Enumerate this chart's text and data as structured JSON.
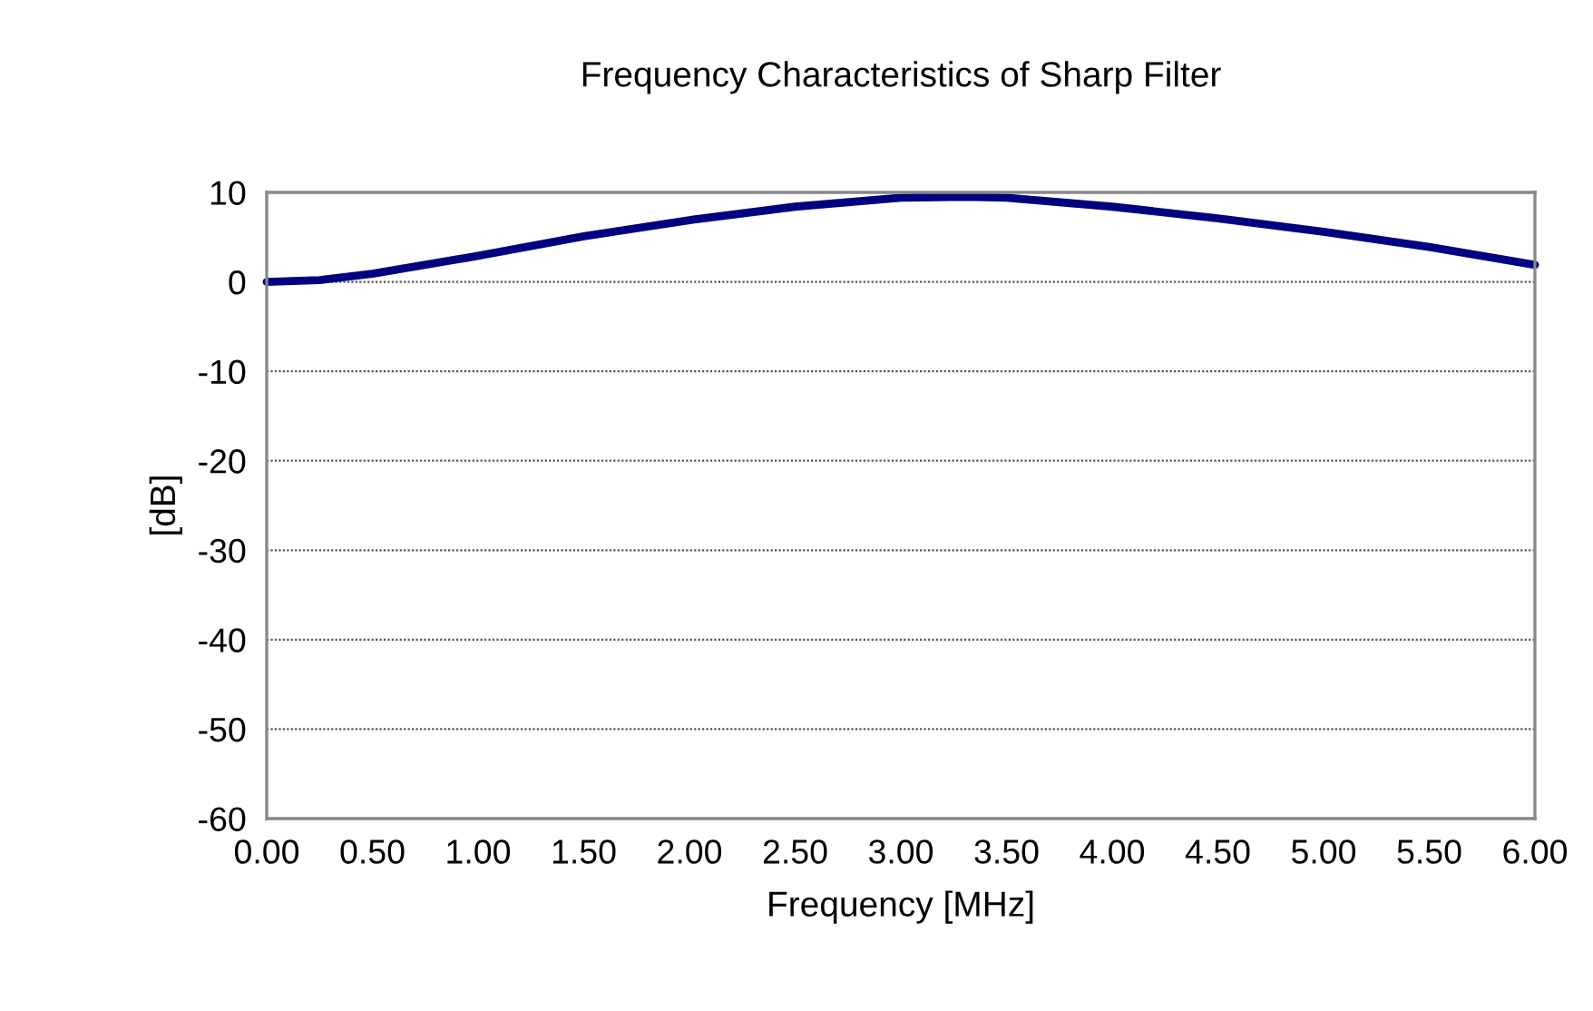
{
  "chart_data": {
    "type": "line",
    "title": "Frequency Characteristics of Sharp Filter",
    "xlabel": "Frequency [MHz]",
    "ylabel": "[dB]",
    "x": [
      0,
      0.25,
      0.5,
      1.0,
      1.5,
      2.0,
      2.5,
      3.0,
      3.3,
      3.5,
      4.0,
      4.5,
      5.0,
      5.5,
      6.0
    ],
    "series": [
      {
        "color": "#000080",
        "values": [
          0,
          0.2,
          0.9,
          2.9,
          5.1,
          6.9,
          8.4,
          9.4,
          9.5,
          9.4,
          8.4,
          7.1,
          5.6,
          3.9,
          1.9
        ]
      }
    ],
    "xlim": [
      0,
      6
    ],
    "xticks": [
      {
        "value": 0,
        "label": "0.00"
      },
      {
        "value": 0.5,
        "label": "0.50"
      },
      {
        "value": 1,
        "label": "1.00"
      },
      {
        "value": 1.5,
        "label": "1.50"
      },
      {
        "value": 2,
        "label": "2.00"
      },
      {
        "value": 2.5,
        "label": "2.50"
      },
      {
        "value": 3,
        "label": "3.00"
      },
      {
        "value": 3.5,
        "label": "3.50"
      },
      {
        "value": 4,
        "label": "4.00"
      },
      {
        "value": 4.5,
        "label": "4.50"
      },
      {
        "value": 5,
        "label": "5.00"
      },
      {
        "value": 5.5,
        "label": "5.50"
      },
      {
        "value": 6,
        "label": "6.00"
      }
    ],
    "ylim": [
      -60,
      10
    ],
    "yticks": [
      -60,
      -50,
      -40,
      -30,
      -20,
      -10,
      0,
      10
    ],
    "grid": "y",
    "line_style": "solid",
    "marker": "none"
  }
}
